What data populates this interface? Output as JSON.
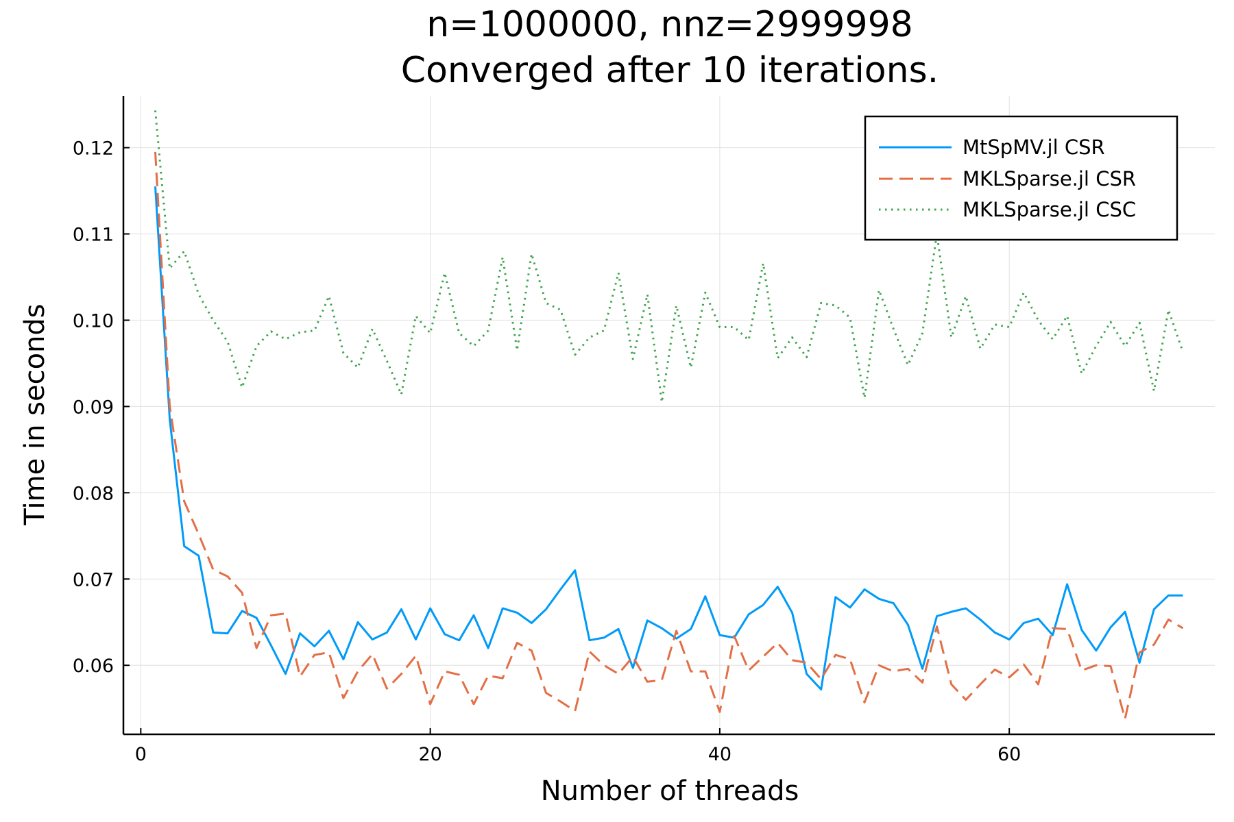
{
  "chart_data": {
    "type": "line",
    "title": "n=1000000, nnz=2999998",
    "subtitle": "Converged after 10 iterations.",
    "xlabel": "Number of threads",
    "ylabel": "Time in seconds",
    "xlim": [
      -1.2,
      74.2
    ],
    "ylim": [
      0.052,
      0.126
    ],
    "xticks": [
      0,
      20,
      40,
      60
    ],
    "xtick_labels": [
      "0",
      "20",
      "40",
      "60"
    ],
    "yticks": [
      0.06,
      0.07,
      0.08,
      0.09,
      0.1,
      0.11,
      0.12
    ],
    "ytick_labels": [
      "0.06",
      "0.07",
      "0.08",
      "0.09",
      "0.10",
      "0.11",
      "0.12"
    ],
    "grid": true,
    "legend_position": "top-right",
    "x": [
      1,
      2,
      3,
      4,
      5,
      6,
      7,
      8,
      9,
      10,
      11,
      12,
      13,
      14,
      15,
      16,
      17,
      18,
      19,
      20,
      21,
      22,
      23,
      24,
      25,
      26,
      27,
      28,
      29,
      30,
      31,
      32,
      33,
      34,
      35,
      36,
      37,
      38,
      39,
      40,
      41,
      42,
      43,
      44,
      45,
      46,
      47,
      48,
      49,
      50,
      51,
      52,
      53,
      54,
      55,
      56,
      57,
      58,
      59,
      60,
      61,
      62,
      63,
      64,
      65,
      66,
      67,
      68,
      69,
      70,
      71,
      72
    ],
    "series": [
      {
        "name": "MtSpMV.jl CSR",
        "color": "#009AF9",
        "dash": "solid",
        "values": [
          0.1155,
          0.0885,
          0.0738,
          0.0727,
          0.0638,
          0.0637,
          0.0663,
          0.0655,
          0.0623,
          0.059,
          0.0637,
          0.0622,
          0.064,
          0.0607,
          0.065,
          0.063,
          0.0638,
          0.0665,
          0.063,
          0.0666,
          0.0636,
          0.0629,
          0.0658,
          0.062,
          0.0666,
          0.0661,
          0.0649,
          0.0665,
          0.0688,
          0.071,
          0.0629,
          0.0632,
          0.0642,
          0.0597,
          0.0652,
          0.0643,
          0.0631,
          0.0642,
          0.068,
          0.0635,
          0.0632,
          0.0659,
          0.067,
          0.0691,
          0.0661,
          0.059,
          0.0572,
          0.0679,
          0.0667,
          0.0688,
          0.0677,
          0.0672,
          0.0647,
          0.0596,
          0.0657,
          0.0662,
          0.0666,
          0.0653,
          0.0638,
          0.063,
          0.0649,
          0.0654,
          0.0635,
          0.0694,
          0.0641,
          0.0617,
          0.0644,
          0.0662,
          0.0603,
          0.0665,
          0.0681,
          0.0681
        ]
      },
      {
        "name": "MKLSparse.jl CSR",
        "color": "#E26F46",
        "dash": "dashed",
        "values": [
          0.1195,
          0.09,
          0.079,
          0.0752,
          0.0711,
          0.0703,
          0.0684,
          0.062,
          0.0658,
          0.066,
          0.0587,
          0.0612,
          0.0615,
          0.0562,
          0.0593,
          0.0613,
          0.0573,
          0.059,
          0.0611,
          0.0555,
          0.0593,
          0.0589,
          0.0555,
          0.0588,
          0.0585,
          0.0626,
          0.0617,
          0.0568,
          0.0558,
          0.0547,
          0.0616,
          0.06,
          0.059,
          0.061,
          0.0581,
          0.0583,
          0.064,
          0.0593,
          0.0593,
          0.0546,
          0.0634,
          0.0594,
          0.061,
          0.0626,
          0.0606,
          0.0603,
          0.0584,
          0.0612,
          0.0607,
          0.0557,
          0.06,
          0.0593,
          0.0596,
          0.058,
          0.0645,
          0.0578,
          0.056,
          0.0578,
          0.0595,
          0.0586,
          0.0601,
          0.0578,
          0.0643,
          0.0642,
          0.0594,
          0.06,
          0.0599,
          0.0538,
          0.0615,
          0.0624,
          0.0653,
          0.0643
        ]
      },
      {
        "name": "MKLSparse.jl CSC",
        "color": "#3DA44D",
        "dash": "dotted",
        "values": [
          0.1243,
          0.106,
          0.108,
          0.103,
          0.1,
          0.0975,
          0.0922,
          0.097,
          0.0987,
          0.0978,
          0.0986,
          0.0988,
          0.1028,
          0.0962,
          0.0945,
          0.099,
          0.0953,
          0.0914,
          0.1005,
          0.0985,
          0.1055,
          0.0985,
          0.097,
          0.0988,
          0.1073,
          0.0965,
          0.1077,
          0.102,
          0.1012,
          0.096,
          0.098,
          0.0988,
          0.1055,
          0.0955,
          0.103,
          0.0905,
          0.1017,
          0.0945,
          0.1032,
          0.0992,
          0.0992,
          0.0977,
          0.1066,
          0.0956,
          0.098,
          0.0957,
          0.102,
          0.1017,
          0.1003,
          0.091,
          0.1035,
          0.099,
          0.0948,
          0.0985,
          0.11,
          0.098,
          0.1028,
          0.0967,
          0.0995,
          0.0992,
          0.1032,
          0.1,
          0.0978,
          0.1005,
          0.0938,
          0.097,
          0.0998,
          0.097,
          0.0997,
          0.0918,
          0.1012,
          0.0963
        ]
      }
    ]
  }
}
